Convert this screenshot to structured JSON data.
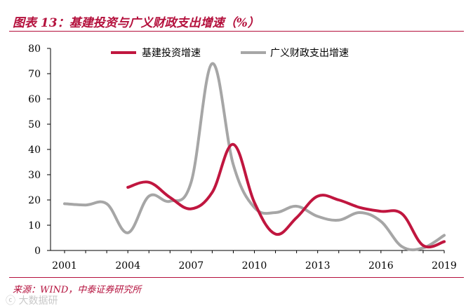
{
  "header": {
    "title": "图表 13：基建投资与广义财政支出增速（%）"
  },
  "footer": {
    "source": "来源：WIND，中泰证券研究所",
    "watermark": "ⓒ 大数据研"
  },
  "colors": {
    "infrastructure": "#c0163f",
    "fiscal": "#a6a6a6",
    "accent": "#b4103c"
  },
  "chart_data": {
    "type": "line",
    "title": "图表 13：基建投资与广义财政支出增速（%）",
    "xlabel": "",
    "ylabel": "",
    "xlim": [
      2001,
      2019
    ],
    "ylim": [
      0,
      80
    ],
    "yticks": [
      "0",
      "10",
      "20",
      "30",
      "40",
      "50",
      "60",
      "70",
      "80"
    ],
    "xticks": [
      "2001",
      "2004",
      "2007",
      "2010",
      "2013",
      "2016",
      "2019"
    ],
    "grid": false,
    "legend": "top-right",
    "series": [
      {
        "name": "基建投资增速",
        "color": "#c0163f",
        "x": [
          2004,
          2005,
          2006,
          2007,
          2008,
          2009,
          2010,
          2011,
          2012,
          2013,
          2014,
          2015,
          2016,
          2017,
          2018,
          2019
        ],
        "y": [
          25,
          27,
          21,
          16.5,
          23,
          42,
          19,
          6.5,
          13,
          21.5,
          20,
          17,
          15.5,
          14.5,
          2,
          3.5
        ]
      },
      {
        "name": "广义财政支出增速",
        "color": "#a6a6a6",
        "x": [
          2001,
          2002,
          2003,
          2004,
          2005,
          2006,
          2007,
          2008,
          2009,
          2010,
          2011,
          2012,
          2013,
          2014,
          2015,
          2016,
          2017,
          2018,
          2019
        ],
        "y": [
          18.5,
          18,
          18.5,
          7,
          21.5,
          19.5,
          27,
          74,
          34,
          17,
          15,
          17.5,
          13.5,
          12,
          15,
          11.5,
          1.5,
          1,
          6
        ]
      }
    ]
  }
}
